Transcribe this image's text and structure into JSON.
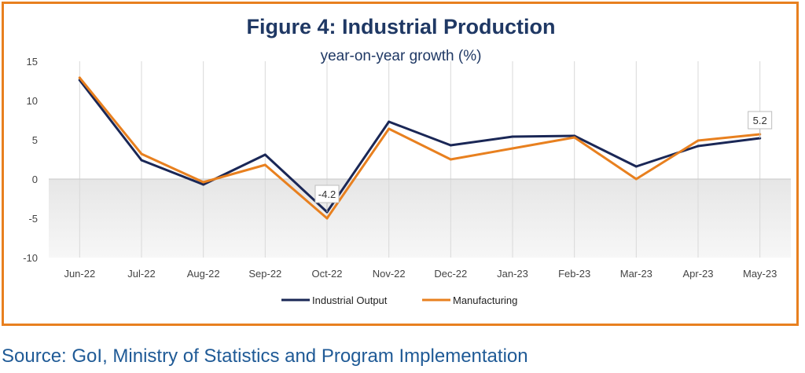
{
  "colors": {
    "frame": "#E8801F",
    "title": "#1F3864",
    "source": "#1F5A96"
  },
  "chart_data": {
    "type": "line",
    "title": "Figure 4: Industrial Production",
    "subtitle": "year-on-year growth (%)",
    "xlabel": "",
    "ylabel": "",
    "ylim": [
      -10,
      15
    ],
    "yticks": [
      "15",
      "10",
      "5",
      "0",
      "-5",
      "-10"
    ],
    "categories": [
      "Jun-22",
      "Jul-22",
      "Aug-22",
      "Sep-22",
      "Oct-22",
      "Nov-22",
      "Dec-22",
      "Jan-23",
      "Feb-23",
      "Mar-23",
      "Apr-23",
      "May-23"
    ],
    "series": [
      {
        "name": "Industrial Output",
        "color": "#1A2756",
        "values": [
          12.6,
          2.4,
          -0.7,
          3.1,
          -4.2,
          7.3,
          4.3,
          5.4,
          5.5,
          1.6,
          4.2,
          5.2
        ]
      },
      {
        "name": "Manufacturing",
        "color": "#E8801F",
        "values": [
          12.9,
          3.2,
          -0.4,
          1.8,
          -5.0,
          6.4,
          2.5,
          3.9,
          5.3,
          0.0,
          4.9,
          5.7
        ]
      }
    ],
    "annotations": [
      {
        "category": "Oct-22",
        "series": "Industrial Output",
        "text": "-4.2"
      },
      {
        "category": "May-23",
        "series": "Industrial Output",
        "text": "5.2"
      }
    ],
    "grid": "vertical",
    "legend": "bottom"
  },
  "source": "Source: GoI, Ministry of Statistics and Program Implementation"
}
